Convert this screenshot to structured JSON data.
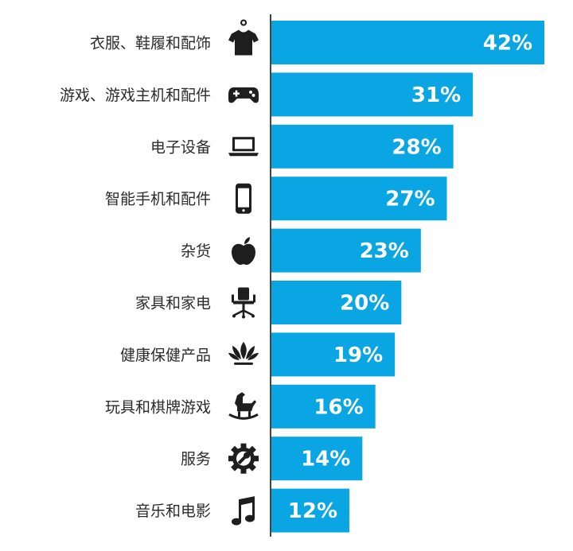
{
  "chart_data": {
    "type": "bar",
    "orientation": "horizontal",
    "title": "",
    "xlabel": "",
    "ylabel": "",
    "xlim": [
      0,
      42
    ],
    "bar_color": "#0aa6e3",
    "axis_color": "#444444",
    "grid": false,
    "categories": [
      "衣服、鞋履和配饰",
      "游戏、游戏主机和配件",
      "电子设备",
      "智能手机和配件",
      "杂货",
      "家具和家电",
      "健康保健产品",
      "玩具和棋牌游戏",
      "服务",
      "音乐和电影"
    ],
    "values": [
      42,
      31,
      28,
      27,
      23,
      20,
      19,
      16,
      14,
      12
    ],
    "value_labels": [
      "42%",
      "31%",
      "28%",
      "27%",
      "23%",
      "20%",
      "19%",
      "16%",
      "14%",
      "12%"
    ],
    "icons": [
      "tshirt-icon",
      "gamepad-icon",
      "laptop-icon",
      "smartphone-icon",
      "apple-icon",
      "office-chair-icon",
      "lotus-icon",
      "rocking-horse-icon",
      "gear-wrench-icon",
      "music-note-icon"
    ]
  }
}
